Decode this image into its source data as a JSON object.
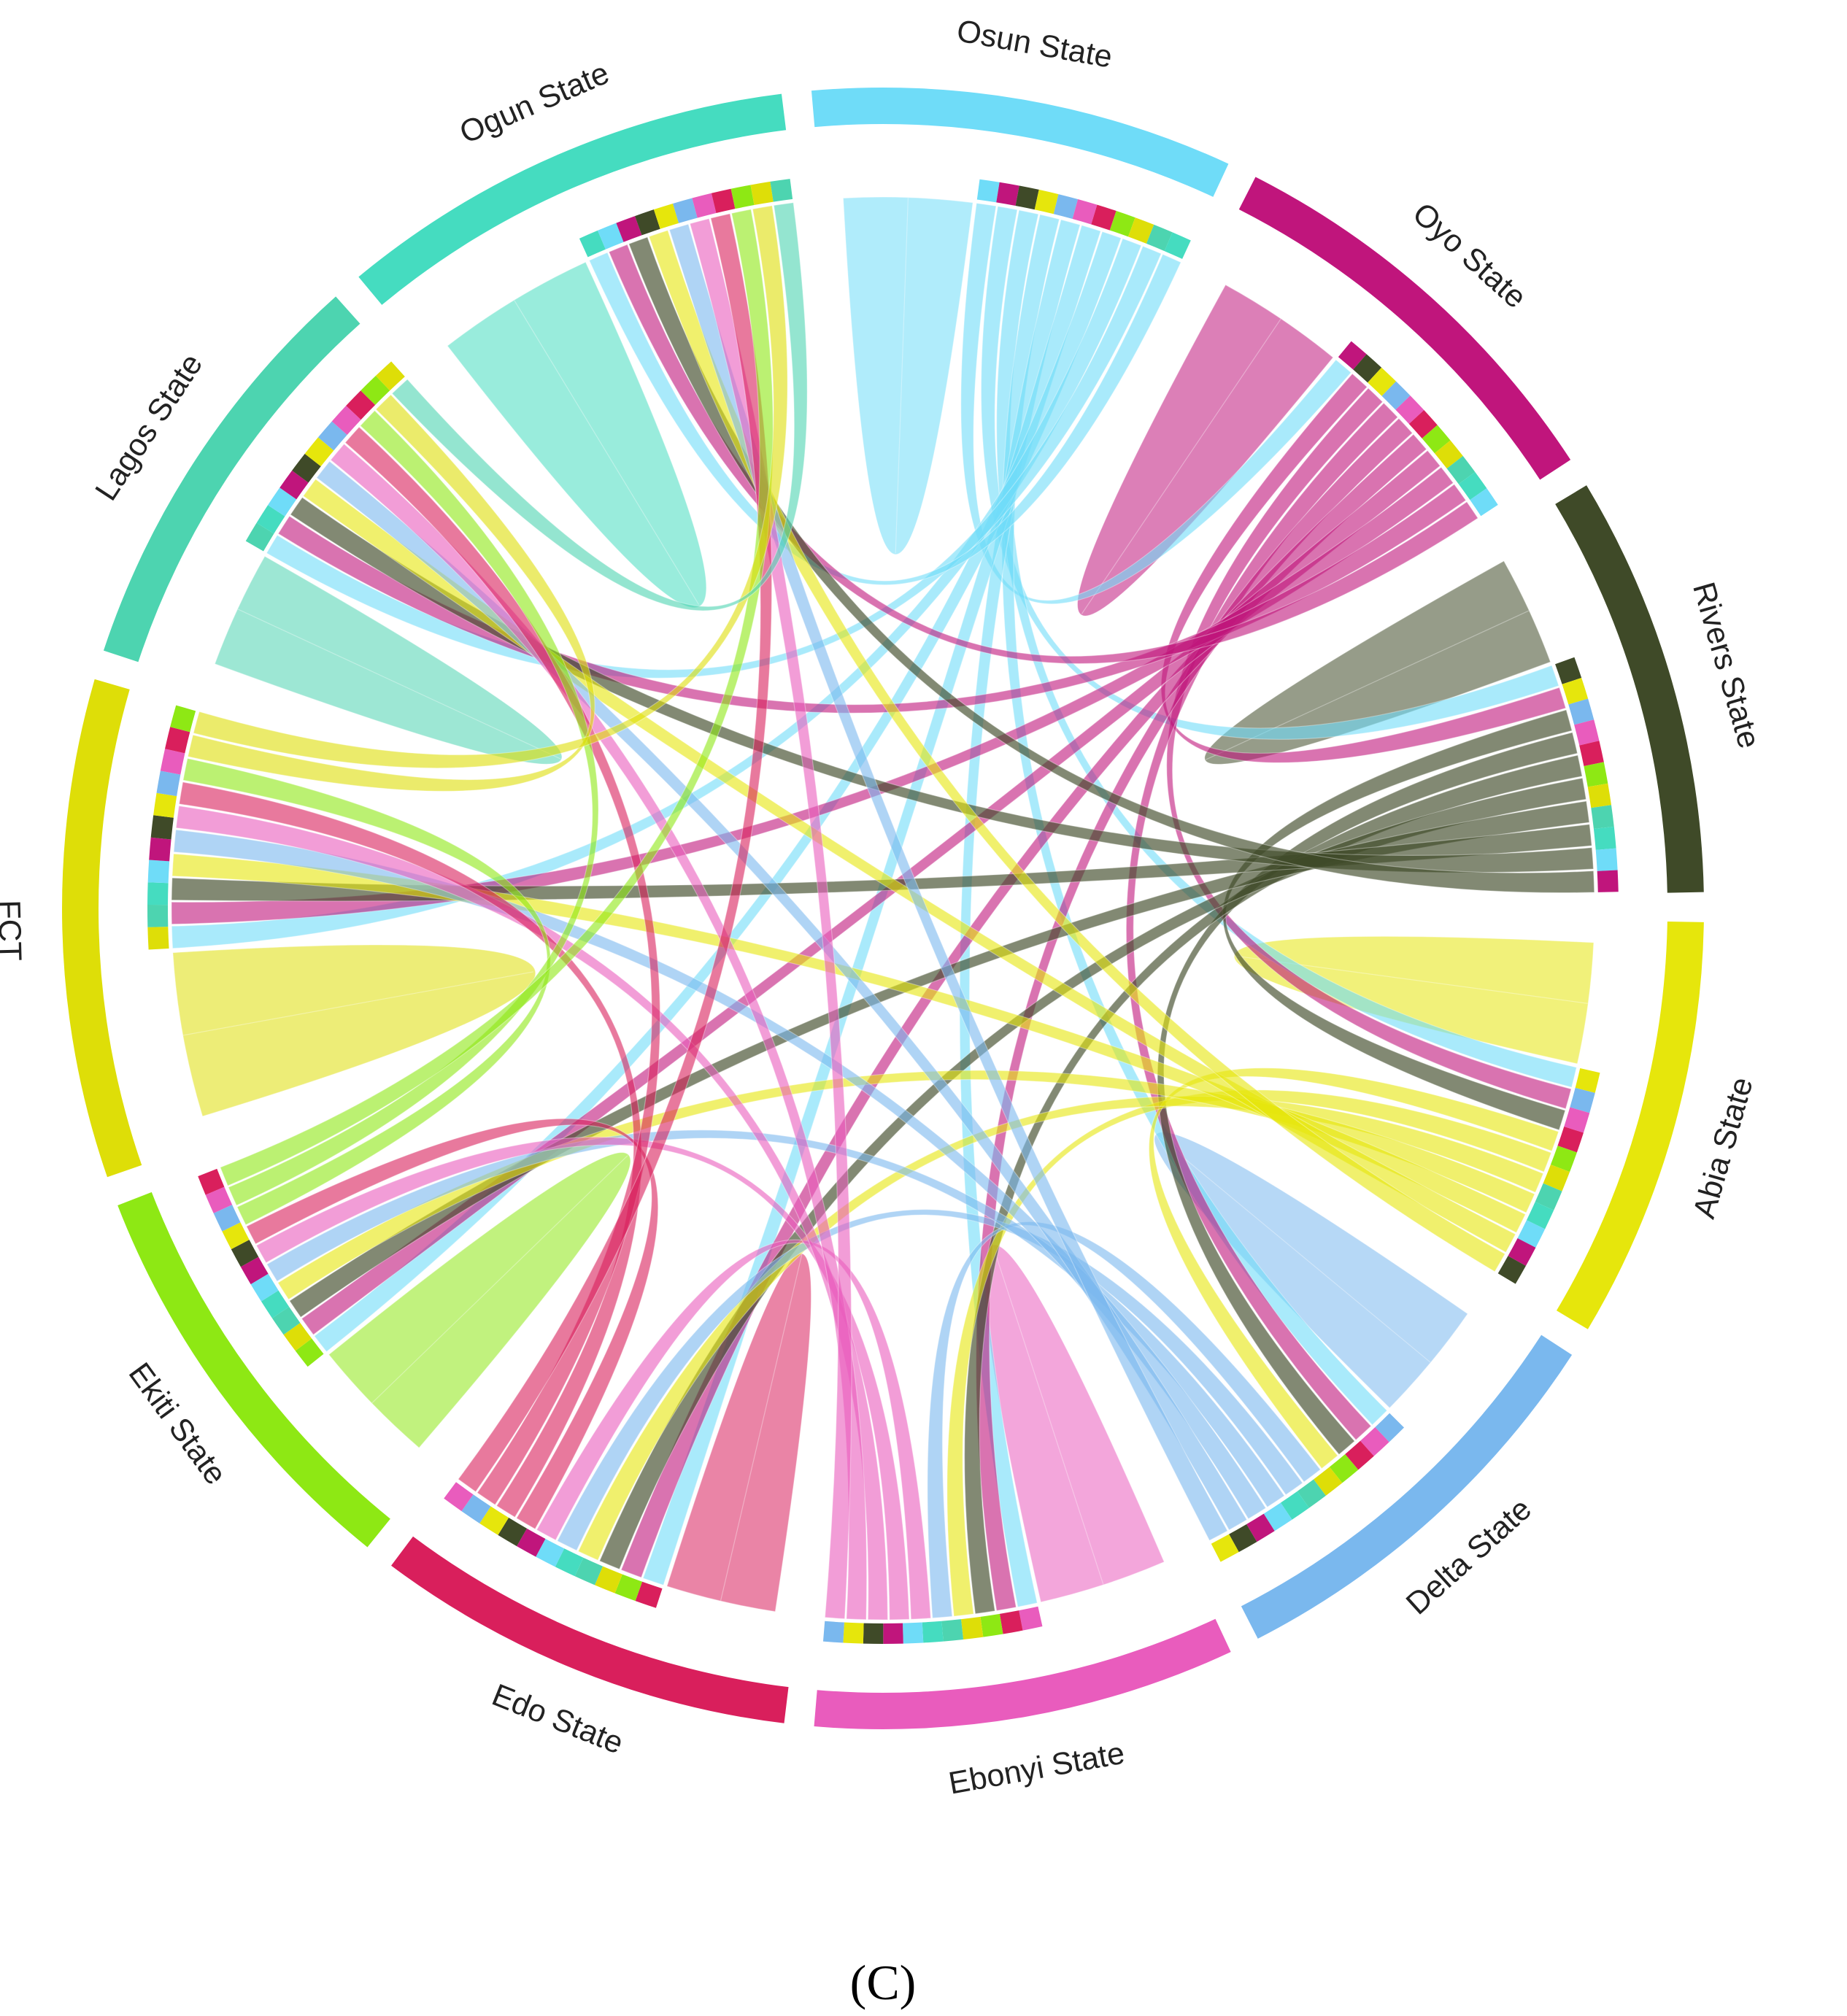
{
  "panel_label": "(C)",
  "chart_data": {
    "type": "chord",
    "title": "",
    "sectors": [
      {
        "name": "Osun State",
        "color": "#6fdcf8"
      },
      {
        "name": "Oyo State",
        "color": "#c0157c"
      },
      {
        "name": "Rivers State",
        "color": "#3f4a28"
      },
      {
        "name": "Abia State",
        "color": "#e6e60c"
      },
      {
        "name": "Delta State",
        "color": "#7ab8ee"
      },
      {
        "name": "Ebonyi State",
        "color": "#e95cbd"
      },
      {
        "name": "Edo State",
        "color": "#d91f5c"
      },
      {
        "name": "Ekiti State",
        "color": "#8ee814"
      },
      {
        "name": "FCT",
        "color": "#dede08"
      },
      {
        "name": "Lagos State",
        "color": "#4dd4b0"
      },
      {
        "name": "Ogun State",
        "color": "#45dcc0"
      }
    ],
    "values_note": "",
    "sector_sizes": [
      11,
      11,
      11,
      11,
      11,
      11,
      11,
      11,
      13,
      11,
      12
    ],
    "self_flow_share": [
      0.35,
      0.35,
      0.3,
      0.33,
      0.33,
      0.35,
      0.3,
      0.35,
      0.38,
      0.32,
      0.4
    ],
    "grid": false,
    "legend": "none"
  }
}
